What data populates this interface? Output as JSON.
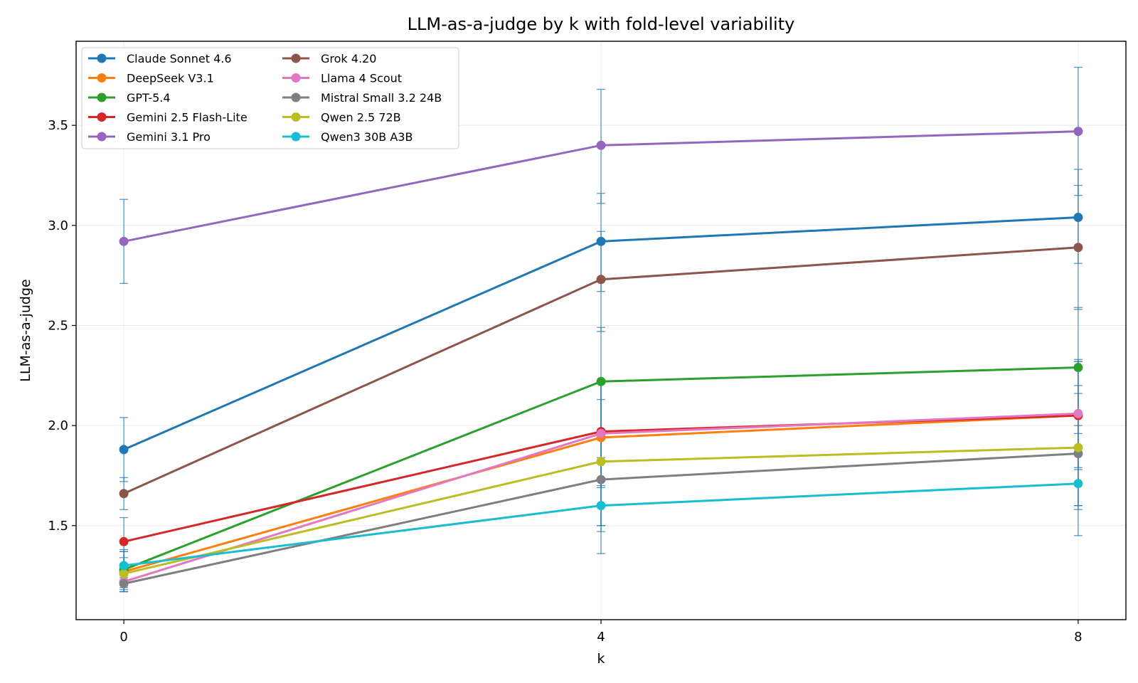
{
  "chart_data": {
    "type": "line",
    "title": "LLM-as-a-judge by k with fold-level variability",
    "xlabel": "k",
    "ylabel": "LLM-as-a-judge",
    "x": [
      0,
      4,
      8
    ],
    "x_tick_labels": [
      "0",
      "4",
      "8"
    ],
    "y_ticks": [
      1.5,
      2.0,
      2.5,
      3.0,
      3.5
    ],
    "y_tick_labels": [
      "1.5",
      "2.0",
      "2.5",
      "3.0",
      "3.5"
    ],
    "xlim": [
      -0.4,
      8.4
    ],
    "ylim": [
      1.03,
      3.92
    ],
    "grid": true,
    "legend_position": "top-left",
    "legend_columns": 2,
    "error_bar_color": "#1f77b4",
    "series": [
      {
        "name": "Claude Sonnet 4.6",
        "color": "#1f77b4",
        "values": [
          1.88,
          2.92,
          3.04
        ],
        "err_low": [
          1.72,
          2.67,
          2.81
        ],
        "err_high": [
          2.04,
          3.16,
          3.28
        ]
      },
      {
        "name": "DeepSeek V3.1",
        "color": "#ff7f0e",
        "values": [
          1.27,
          1.94,
          2.05
        ],
        "err_low": [
          1.19,
          1.69,
          1.78
        ],
        "err_high": [
          1.37,
          2.21,
          2.32
        ]
      },
      {
        "name": "GPT-5.4",
        "color": "#2ca02c",
        "values": [
          1.28,
          2.22,
          2.29
        ],
        "err_low": [
          1.17,
          1.96,
          2.0
        ],
        "err_high": [
          1.38,
          2.49,
          2.59
        ]
      },
      {
        "name": "Gemini 2.5 Flash-Lite",
        "color": "#d62728",
        "values": [
          1.42,
          1.97,
          2.05
        ],
        "err_low": [
          1.31,
          1.7,
          1.79
        ],
        "err_high": [
          1.54,
          2.22,
          2.32
        ]
      },
      {
        "name": "Gemini 3.1 Pro",
        "color": "#9467bd",
        "values": [
          2.92,
          3.4,
          3.47
        ],
        "err_low": [
          2.71,
          3.11,
          3.15
        ],
        "err_high": [
          3.13,
          3.68,
          3.79
        ]
      },
      {
        "name": "Grok 4.20",
        "color": "#8c564b",
        "values": [
          1.66,
          2.73,
          2.89
        ],
        "err_low": [
          1.58,
          2.47,
          2.58
        ],
        "err_high": [
          1.74,
          2.97,
          3.2
        ]
      },
      {
        "name": "Llama 4 Scout",
        "color": "#e377c2",
        "values": [
          1.22,
          1.96,
          2.06
        ],
        "err_low": [
          1.17,
          1.5,
          1.6
        ],
        "err_high": [
          1.3,
          2.21,
          2.33
        ]
      },
      {
        "name": "Mistral Small 3.2 24B",
        "color": "#7f7f7f",
        "values": [
          1.21,
          1.73,
          1.86
        ],
        "err_low": [
          1.17,
          1.47,
          1.58
        ],
        "err_high": [
          1.25,
          1.97,
          2.16
        ]
      },
      {
        "name": "Qwen 2.5 72B",
        "color": "#bcbd22",
        "values": [
          1.26,
          1.82,
          1.89
        ],
        "err_low": [
          1.18,
          1.5,
          1.6
        ],
        "err_high": [
          1.34,
          2.13,
          2.2
        ]
      },
      {
        "name": "Qwen3 30B A3B",
        "color": "#17becf",
        "values": [
          1.3,
          1.6,
          1.71
        ],
        "err_low": [
          1.24,
          1.36,
          1.45
        ],
        "err_high": [
          1.37,
          1.84,
          1.96
        ]
      }
    ]
  }
}
